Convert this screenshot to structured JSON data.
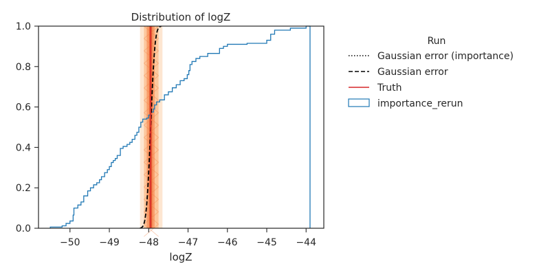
{
  "chart_data": {
    "type": "line",
    "title": "Distribution of logZ",
    "xlabel": "logZ",
    "ylabel": "",
    "xlim": [
      -50.8,
      -43.55
    ],
    "ylim": [
      0.0,
      1.0
    ],
    "xticks": [
      -50,
      -49,
      -48,
      -47,
      -46,
      -45,
      -44
    ],
    "xtick_labels": [
      "−50",
      "−49",
      "−48",
      "−47",
      "−46",
      "−45",
      "−44"
    ],
    "yticks": [
      0.0,
      0.2,
      0.4,
      0.6,
      0.8,
      1.0
    ],
    "ytick_labels": [
      "0.0",
      "0.2",
      "0.4",
      "0.6",
      "0.8",
      "1.0"
    ],
    "grid": false,
    "legend": {
      "title": "Run",
      "placement": "outside right",
      "entries": [
        {
          "label": "Gaussian error (importance)",
          "style": "dotted",
          "color": "#000000"
        },
        {
          "label": "Gaussian error",
          "style": "dashed",
          "color": "#000000"
        },
        {
          "label": "Truth",
          "style": "solid",
          "color": "#d62728"
        },
        {
          "label": "importance_rerun",
          "style": "box",
          "color": "#1f77b4"
        }
      ]
    },
    "truth": {
      "x": -47.95,
      "color": "#d62728",
      "bands": [
        {
          "x0": -48.22,
          "x1": -47.65,
          "color": "#fde0c5",
          "opacity": 0.8
        },
        {
          "x0": -48.12,
          "x1": -47.75,
          "color": "#fdbf90",
          "opacity": 0.8
        },
        {
          "x0": -48.05,
          "x1": -47.85,
          "color": "#f8945e",
          "opacity": 0.8
        },
        {
          "x0": -47.99,
          "x1": -47.91,
          "color": "#e65a2e",
          "opacity": 0.85
        }
      ]
    },
    "gaussian_error": {
      "mean": -47.95,
      "sigma": 0.085,
      "x_range": [
        -48.22,
        -47.68
      ]
    },
    "series": [
      {
        "name": "importance_rerun",
        "color": "#1f77b4",
        "drawstyle": "steps-post",
        "points": [
          [
            -50.5,
            0.006
          ],
          [
            -50.2,
            0.012
          ],
          [
            -50.1,
            0.024
          ],
          [
            -50.0,
            0.036
          ],
          [
            -49.92,
            0.065
          ],
          [
            -49.9,
            0.1
          ],
          [
            -49.8,
            0.115
          ],
          [
            -49.72,
            0.13
          ],
          [
            -49.65,
            0.16
          ],
          [
            -49.55,
            0.185
          ],
          [
            -49.48,
            0.2
          ],
          [
            -49.4,
            0.215
          ],
          [
            -49.32,
            0.225
          ],
          [
            -49.25,
            0.24
          ],
          [
            -49.2,
            0.255
          ],
          [
            -49.12,
            0.275
          ],
          [
            -49.05,
            0.29
          ],
          [
            -49.0,
            0.305
          ],
          [
            -48.95,
            0.325
          ],
          [
            -48.9,
            0.335
          ],
          [
            -48.85,
            0.345
          ],
          [
            -48.8,
            0.36
          ],
          [
            -48.72,
            0.395
          ],
          [
            -48.65,
            0.405
          ],
          [
            -48.55,
            0.415
          ],
          [
            -48.48,
            0.425
          ],
          [
            -48.42,
            0.44
          ],
          [
            -48.35,
            0.46
          ],
          [
            -48.3,
            0.475
          ],
          [
            -48.25,
            0.5
          ],
          [
            -48.2,
            0.525
          ],
          [
            -48.15,
            0.54
          ],
          [
            -48.05,
            0.545
          ],
          [
            -48.0,
            0.56
          ],
          [
            -47.95,
            0.575
          ],
          [
            -47.88,
            0.59
          ],
          [
            -47.85,
            0.61
          ],
          [
            -47.8,
            0.625
          ],
          [
            -47.72,
            0.635
          ],
          [
            -47.6,
            0.66
          ],
          [
            -47.5,
            0.675
          ],
          [
            -47.4,
            0.695
          ],
          [
            -47.3,
            0.71
          ],
          [
            -47.2,
            0.73
          ],
          [
            -47.1,
            0.74
          ],
          [
            -47.02,
            0.76
          ],
          [
            -46.98,
            0.78
          ],
          [
            -46.95,
            0.81
          ],
          [
            -46.9,
            0.825
          ],
          [
            -46.8,
            0.84
          ],
          [
            -46.7,
            0.85
          ],
          [
            -46.5,
            0.865
          ],
          [
            -46.2,
            0.89
          ],
          [
            -46.1,
            0.9
          ],
          [
            -46.0,
            0.91
          ],
          [
            -45.5,
            0.915
          ],
          [
            -45.0,
            0.93
          ],
          [
            -44.9,
            0.96
          ],
          [
            -44.8,
            0.98
          ],
          [
            -44.4,
            0.99
          ],
          [
            -44.0,
            1.0
          ],
          [
            -43.9,
            1.0
          ]
        ]
      }
    ]
  }
}
